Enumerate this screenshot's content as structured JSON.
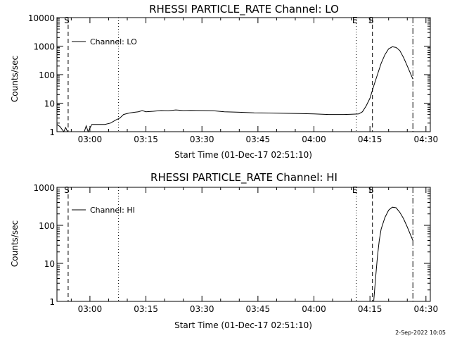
{
  "footer": {
    "stamp": "2-Sep-2022 10:05"
  },
  "chart_data": [
    {
      "type": "line",
      "title": "RHESSI PARTICLE_RATE Channel: LO",
      "xlabel": "Start Time (01-Dec-17 02:51:10)",
      "ylabel": "Counts/sec",
      "yscale": "log",
      "xlim": [
        "02:51:10",
        "04:31:10"
      ],
      "ylim": [
        1,
        10000
      ],
      "xticks": [
        "03:00",
        "03:15",
        "03:30",
        "03:45",
        "04:00",
        "04:15",
        "04:30"
      ],
      "yticks": [
        "1",
        "10",
        "100",
        "1000",
        "10000"
      ],
      "legend": {
        "label": "Channel: LO",
        "position": "top-left"
      },
      "markers": [
        {
          "time": "02:54:10",
          "label": "S",
          "style": "dashed"
        },
        {
          "time": "03:07:40",
          "label": "",
          "style": "dotted"
        },
        {
          "time": "04:11:20",
          "label": "E",
          "style": "dotted"
        },
        {
          "time": "04:15:40",
          "label": "S",
          "style": "dashed"
        },
        {
          "time": "04:26:30",
          "label": "",
          "style": "dashdot"
        }
      ],
      "series": [
        {
          "name": "Channel: LO",
          "x": [
            "02:51:10",
            "02:52:00",
            "02:53:00",
            "02:53:30",
            "02:54:00",
            "02:55:00",
            "02:58:30",
            "02:59:00",
            "02:59:30",
            "03:00:30",
            "03:02:00",
            "03:04:00",
            "03:05:30",
            "03:07:00",
            "03:08:00",
            "03:09:00",
            "03:10:30",
            "03:12:00",
            "03:13:00",
            "03:14:00",
            "03:15:00",
            "03:17:00",
            "03:19:00",
            "03:21:00",
            "03:23:00",
            "03:25:00",
            "03:27:00",
            "03:30:00",
            "03:33:00",
            "03:36:00",
            "03:40:00",
            "03:44:00",
            "03:48:00",
            "03:52:00",
            "03:56:00",
            "04:00:00",
            "04:04:00",
            "04:08:00",
            "04:10:00",
            "04:12:00",
            "04:13:00",
            "04:14:00",
            "04:15:00",
            "04:16:00",
            "04:17:00",
            "04:18:00",
            "04:19:00",
            "04:20:00",
            "04:21:00",
            "04:22:00",
            "04:23:00",
            "04:24:00",
            "04:25:00",
            "04:26:30"
          ],
          "y": [
            1.8,
            1.5,
            1.0,
            1.4,
            1.0,
            1.0,
            1.0,
            1.6,
            1.0,
            1.8,
            1.8,
            1.8,
            2.0,
            2.6,
            3.0,
            4.0,
            4.5,
            4.8,
            5.0,
            5.5,
            5.0,
            5.2,
            5.5,
            5.4,
            5.8,
            5.5,
            5.6,
            5.5,
            5.4,
            5.0,
            4.8,
            4.6,
            4.5,
            4.4,
            4.3,
            4.2,
            4.0,
            4.0,
            4.1,
            4.2,
            5.0,
            8.0,
            15,
            40,
            100,
            250,
            500,
            800,
            950,
            900,
            700,
            400,
            200,
            70
          ]
        }
      ]
    },
    {
      "type": "line",
      "title": "RHESSI PARTICLE_RATE Channel: HI",
      "xlabel": "Start Time (01-Dec-17 02:51:10)",
      "ylabel": "Counts/sec",
      "yscale": "log",
      "xlim": [
        "02:51:10",
        "04:31:10"
      ],
      "ylim": [
        1,
        1000
      ],
      "xticks": [
        "03:00",
        "03:15",
        "03:30",
        "03:45",
        "04:00",
        "04:15",
        "04:30"
      ],
      "yticks": [
        "1",
        "10",
        "100",
        "1000"
      ],
      "legend": {
        "label": "Channel: HI",
        "position": "top-left"
      },
      "markers": [
        {
          "time": "02:54:10",
          "label": "S",
          "style": "dashed"
        },
        {
          "time": "03:07:40",
          "label": "",
          "style": "dotted"
        },
        {
          "time": "04:11:20",
          "label": "E",
          "style": "dotted"
        },
        {
          "time": "04:15:40",
          "label": "S",
          "style": "dashed"
        },
        {
          "time": "04:26:30",
          "label": "",
          "style": "dashdot"
        }
      ],
      "series": [
        {
          "name": "Channel: HI",
          "x": [
            "04:16:00",
            "04:16:30",
            "04:17:00",
            "04:17:30",
            "04:18:00",
            "04:19:00",
            "04:20:00",
            "04:21:00",
            "04:22:00",
            "04:23:00",
            "04:24:00",
            "04:25:00",
            "04:26:30"
          ],
          "y": [
            1.0,
            4,
            15,
            40,
            80,
            160,
            250,
            300,
            290,
            220,
            150,
            90,
            40
          ]
        }
      ]
    }
  ]
}
